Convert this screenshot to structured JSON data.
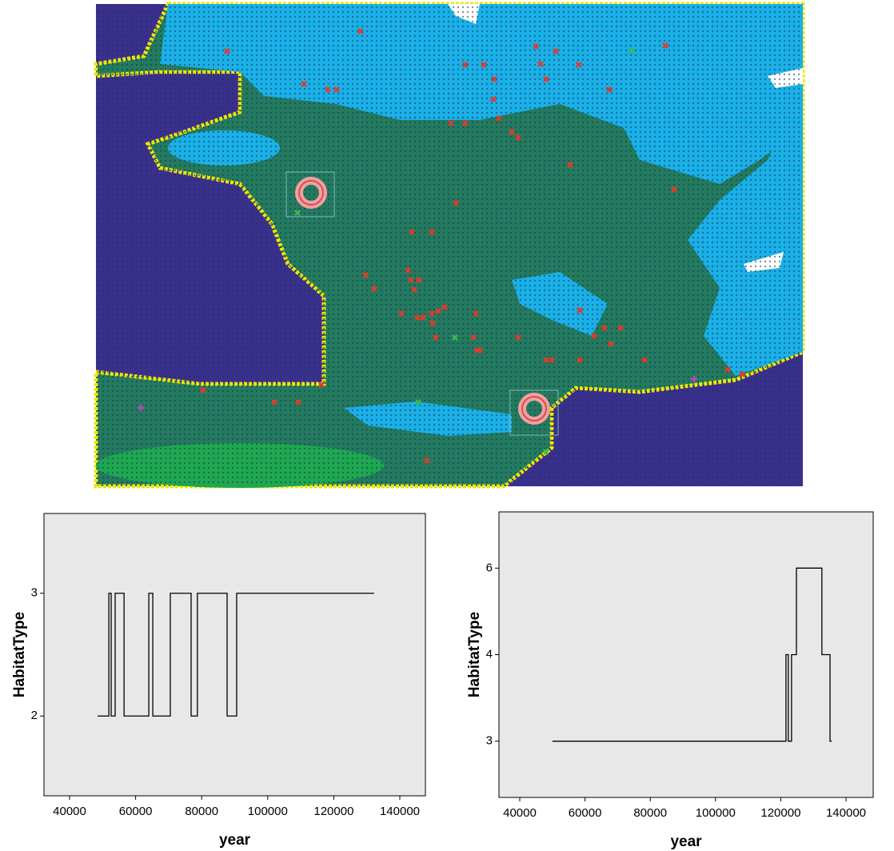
{
  "chart_data": [
    {
      "type": "step",
      "color": "#000000",
      "xlabel": "year",
      "ylabel": "HabitatType",
      "x": [
        48500,
        51900,
        52600,
        53800,
        56500,
        64000,
        65200,
        70500,
        76800,
        78700,
        87700,
        90600,
        132200
      ],
      "values": [
        2,
        3,
        2,
        3,
        2,
        3,
        2,
        3,
        2,
        3,
        2,
        3,
        3
      ],
      "xlim": [
        32250,
        147750
      ],
      "xticks": [
        40000,
        60000,
        80000,
        100000,
        120000,
        140000
      ],
      "yscale": "category",
      "yticks": [
        2,
        3
      ]
    },
    {
      "type": "step",
      "color": "#000000",
      "xlabel": "year",
      "ylabel": "HabitatType",
      "x": [
        50000,
        121600,
        122300,
        123300,
        124800,
        132600,
        135100,
        135600
      ],
      "values": [
        3,
        4,
        3,
        4,
        6,
        4,
        3,
        3
      ],
      "xlim": [
        33630,
        148330
      ],
      "xticks": [
        40000,
        60000,
        80000,
        100000,
        120000,
        140000
      ],
      "yscale": "category",
      "yticks": [
        3,
        4,
        6
      ]
    }
  ]
}
